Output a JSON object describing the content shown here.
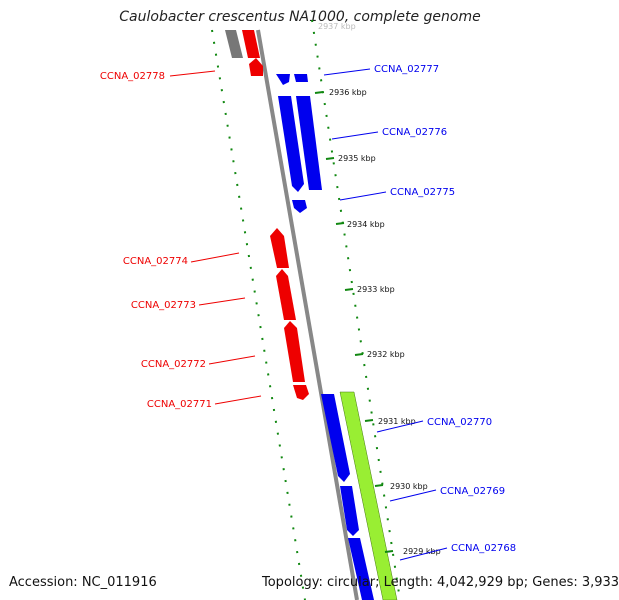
{
  "title": "Caulobacter crescentus NA1000, complete genome",
  "accession_line": "Accession: NC_011916",
  "summary_line": "Topology: circular; Length: 4,042,929 bp; Genes: 3,933",
  "colors": {
    "plus_strand": "#0000ee",
    "minus_strand": "#ee0000",
    "feature_green": "#99ee33",
    "backbone": "#888888",
    "gc_ticks": "#118811",
    "kbp_ticks": "#118811"
  },
  "kbp_labels": [
    "2937 kbp",
    "2936 kbp",
    "2935 kbp",
    "2934 kbp",
    "2933 kbp",
    "2932 kbp",
    "2931 kbp",
    "2930 kbp",
    "2929 kbp"
  ],
  "genes_minus": [
    {
      "label": "CCNA_02778"
    },
    {
      "label": "CCNA_02774"
    },
    {
      "label": "CCNA_02773"
    },
    {
      "label": "CCNA_02772"
    },
    {
      "label": "CCNA_02771"
    }
  ],
  "genes_plus": [
    {
      "label": "CCNA_02777"
    },
    {
      "label": "CCNA_02776"
    },
    {
      "label": "CCNA_02775"
    },
    {
      "label": "CCNA_02770"
    },
    {
      "label": "CCNA_02769"
    },
    {
      "label": "CCNA_02768"
    }
  ]
}
